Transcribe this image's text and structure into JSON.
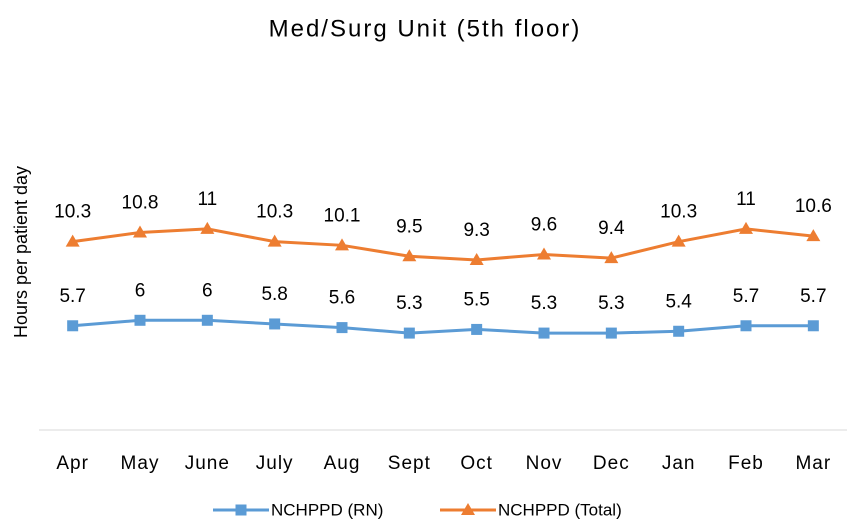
{
  "chart_data": {
    "type": "line",
    "title": "Med/Surg Unit (5th floor)",
    "y_label": "Hours per patient day",
    "categories": [
      "Apr",
      "May",
      "June",
      "July",
      "Aug",
      "Sept",
      "Oct",
      "Nov",
      "Dec",
      "Jan",
      "Feb",
      "Mar"
    ],
    "series": [
      {
        "name": "NCHPPD (RN)",
        "color": "#5b9bd5",
        "marker": "square",
        "values": [
          5.7,
          6,
          6,
          5.8,
          5.6,
          5.3,
          5.5,
          5.3,
          5.3,
          5.4,
          5.7,
          5.7
        ]
      },
      {
        "name": "NCHPPD (Total)",
        "color": "#ed7d31",
        "marker": "triangle",
        "values": [
          10.3,
          10.8,
          11,
          10.3,
          10.1,
          9.5,
          9.3,
          9.6,
          9.4,
          10.3,
          11,
          10.6
        ]
      }
    ],
    "ylim": [
      0,
      14
    ],
    "grid": false,
    "legend": "bottom"
  }
}
